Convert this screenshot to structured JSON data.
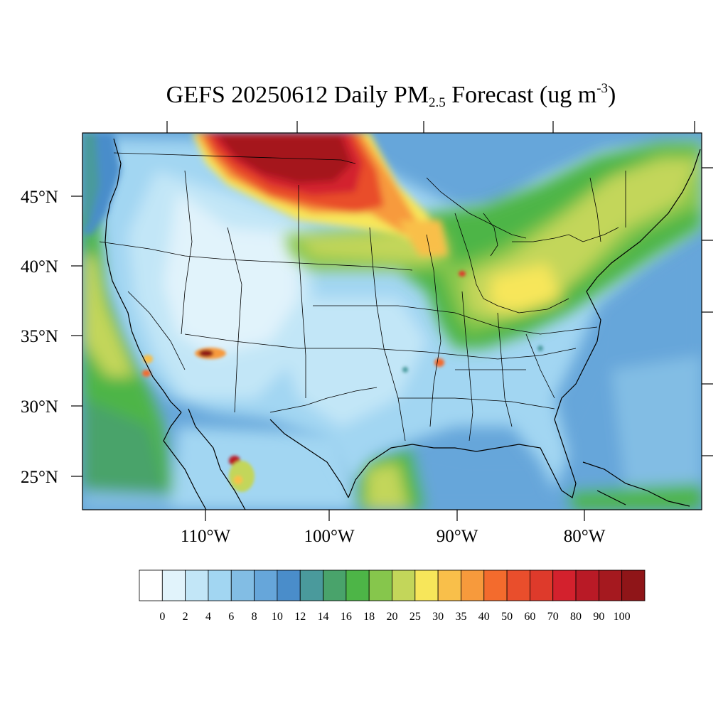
{
  "title": {
    "prefix": "GEFS 20250612 Daily PM",
    "subscript": "2.5",
    "middle": " Forecast (ug m",
    "superscript": "-3",
    "suffix": ")"
  },
  "lat_labels": [
    "45°N",
    "40°N",
    "35°N",
    "30°N",
    "25°N"
  ],
  "lon_labels": [
    "110°W",
    "100°W",
    "90°W",
    "80°W"
  ],
  "colorbar": {
    "colors": [
      "#ffffff",
      "#e1f3fb",
      "#c2e6f7",
      "#a2d6f2",
      "#82bde4",
      "#66a6da",
      "#4a8dca",
      "#4a9a9c",
      "#49a36b",
      "#4db547",
      "#86c64c",
      "#c3d65a",
      "#f7e65a",
      "#f9bf4a",
      "#f79a3c",
      "#f36b2d",
      "#e94e2c",
      "#de3a2b",
      "#d3212d",
      "#b91a26",
      "#a5191f",
      "#8f1518"
    ],
    "labels": [
      "0",
      "2",
      "4",
      "6",
      "8",
      "10",
      "12",
      "14",
      "16",
      "18",
      "20",
      "25",
      "30",
      "35",
      "40",
      "50",
      "60",
      "70",
      "80",
      "90",
      "100"
    ]
  }
}
